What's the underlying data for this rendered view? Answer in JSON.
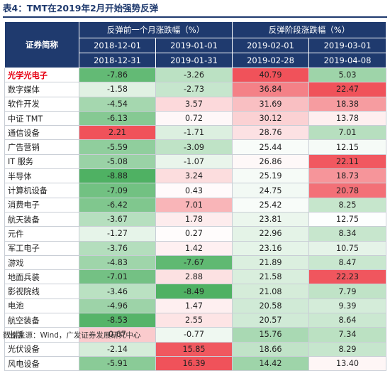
{
  "title": "表4：TMT在2019年2月开始强势反弹",
  "header": {
    "corner": "证券简称",
    "group1": "反弹前一个月涨跌幅（%）",
    "group2": "反弹阶段涨跌幅（%）",
    "cols": [
      {
        "start": "2018-12-01",
        "end": "2018-12-31"
      },
      {
        "start": "2019-01-01",
        "end": "2019-01-31"
      },
      {
        "start": "2019-02-01",
        "end": "2019-02-28"
      },
      {
        "start": "2019-03-01",
        "end": "2019-04-08"
      }
    ]
  },
  "rows": [
    {
      "name": "光学光电子",
      "highlight": true,
      "values": [
        "-7.86",
        "-3.26",
        "40.79",
        "5.03"
      ]
    },
    {
      "name": "数字媒体",
      "values": [
        "-1.58",
        "-2.73",
        "36.84",
        "22.47"
      ]
    },
    {
      "name": "软件开发",
      "values": [
        "-4.54",
        "3.57",
        "31.69",
        "18.38"
      ]
    },
    {
      "name": "中证 TMT",
      "values": [
        "-6.13",
        "0.72",
        "30.12",
        "13.78"
      ]
    },
    {
      "name": "通信设备",
      "values": [
        "2.21",
        "-1.71",
        "28.76",
        "7.01"
      ]
    },
    {
      "name": "广告营销",
      "values": [
        "-5.59",
        "-3.09",
        "25.44",
        "12.15"
      ]
    },
    {
      "name": "IT 服务",
      "values": [
        "-5.08",
        "-1.07",
        "26.86",
        "22.11"
      ]
    },
    {
      "name": "半导体",
      "values": [
        "-8.88",
        "3.24",
        "25.19",
        "18.73"
      ]
    },
    {
      "name": "计算机设备",
      "values": [
        "-7.09",
        "0.43",
        "24.75",
        "20.78"
      ]
    },
    {
      "name": "消费电子",
      "values": [
        "-6.42",
        "7.01",
        "25.42",
        "8.25"
      ]
    },
    {
      "name": "航天装备",
      "values": [
        "-3.67",
        "1.78",
        "23.81",
        "12.75"
      ]
    },
    {
      "name": "元件",
      "values": [
        "-1.27",
        "0.27",
        "22.96",
        "8.34"
      ]
    },
    {
      "name": "军工电子",
      "values": [
        "-3.76",
        "1.42",
        "23.16",
        "10.75"
      ]
    },
    {
      "name": "游戏",
      "values": [
        "-4.83",
        "-7.67",
        "21.89",
        "8.47"
      ]
    },
    {
      "name": "地面兵装",
      "values": [
        "-7.01",
        "2.88",
        "21.58",
        "22.23"
      ]
    },
    {
      "name": "影视院线",
      "values": [
        "-3.46",
        "-8.49",
        "21.08",
        "7.79"
      ]
    },
    {
      "name": "电池",
      "values": [
        "-4.96",
        "1.47",
        "20.58",
        "9.39"
      ]
    },
    {
      "name": "航空装备",
      "values": [
        "-8.53",
        "2.55",
        "20.57",
        "8.64"
      ]
    },
    {
      "name": "出版",
      "values": [
        "0.67",
        "-0.77",
        "15.76",
        "7.34"
      ]
    },
    {
      "name": "光伏设备",
      "values": [
        "-2.14",
        "15.85",
        "18.66",
        "8.29"
      ]
    },
    {
      "name": "风电设备",
      "values": [
        "-5.91",
        "16.39",
        "14.42",
        "13.40"
      ]
    }
  ],
  "colors": {
    "header_bg": "#1f3a6e",
    "positive": "#f0525a",
    "negative": "#4fb163",
    "neutral": "#ffffff",
    "highlight_text": "#e60012"
  },
  "footer": "数据来源：Wind，广发证券发展研究中心"
}
